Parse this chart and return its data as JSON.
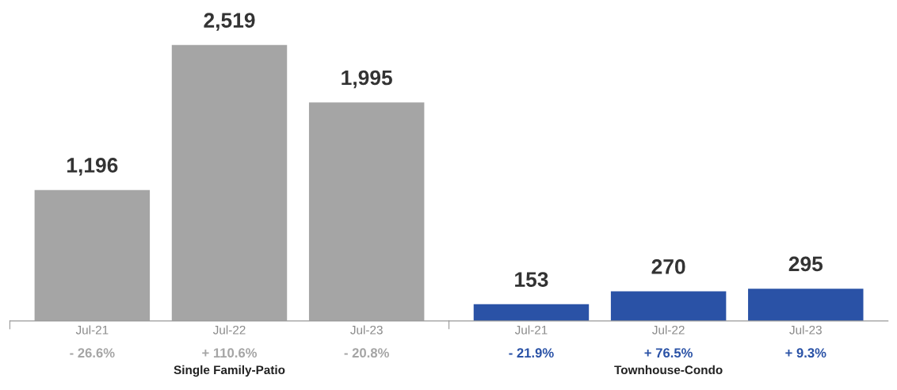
{
  "chart_data": [
    {
      "type": "bar",
      "xlabel": "Single Family-Patio",
      "categories": [
        "Jul-21",
        "Jul-22",
        "Jul-23"
      ],
      "values": [
        1196,
        2519,
        1995
      ],
      "value_labels": [
        "1,196",
        "2,519",
        "1,995"
      ],
      "color": "#a5a5a5",
      "tick_labels": "x",
      "annotations": [
        "- 26.6%",
        "+ 110.6%",
        "- 20.8%"
      ]
    },
    {
      "type": "bar",
      "xlabel": "Townhouse-Condo",
      "categories": [
        "Jul-21",
        "Jul-22",
        "Jul-23"
      ],
      "values": [
        153,
        270,
        295
      ],
      "value_labels": [
        "153",
        "270",
        "295"
      ],
      "color": "#2a52a6",
      "tick_labels": "x",
      "annotations": [
        "- 21.9%",
        "+ 76.5%",
        "+ 9.3%"
      ]
    }
  ]
}
